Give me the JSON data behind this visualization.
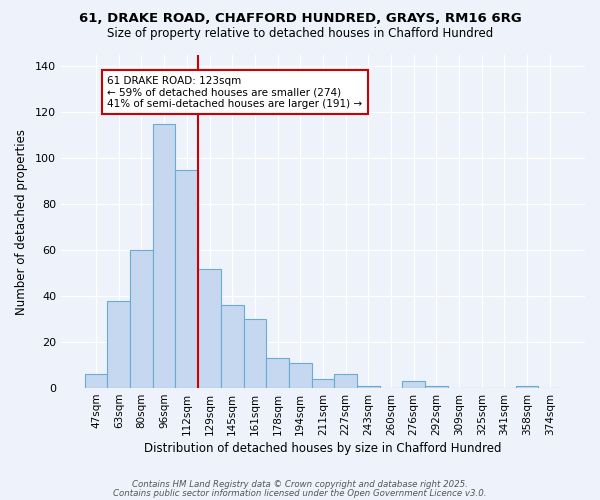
{
  "title1": "61, DRAKE ROAD, CHAFFORD HUNDRED, GRAYS, RM16 6RG",
  "title2": "Size of property relative to detached houses in Chafford Hundred",
  "xlabel": "Distribution of detached houses by size in Chafford Hundred",
  "ylabel": "Number of detached properties",
  "bar_labels": [
    "47sqm",
    "63sqm",
    "80sqm",
    "96sqm",
    "112sqm",
    "129sqm",
    "145sqm",
    "161sqm",
    "178sqm",
    "194sqm",
    "211sqm",
    "227sqm",
    "243sqm",
    "260sqm",
    "276sqm",
    "292sqm",
    "309sqm",
    "325sqm",
    "341sqm",
    "358sqm",
    "374sqm"
  ],
  "bar_values": [
    6,
    38,
    60,
    115,
    95,
    52,
    36,
    30,
    13,
    11,
    4,
    6,
    1,
    0,
    3,
    1,
    0,
    0,
    0,
    1,
    0
  ],
  "bar_color": "#c5d8f0",
  "bar_edge_color": "#6aaad4",
  "vline_x_idx": 4.5,
  "vline_color": "#cc0000",
  "annotation_text": "61 DRAKE ROAD: 123sqm\n← 59% of detached houses are smaller (274)\n41% of semi-detached houses are larger (191) →",
  "box_color": "#cc0000",
  "bg_color": "#eef2fb",
  "footer1": "Contains HM Land Registry data © Crown copyright and database right 2025.",
  "footer2": "Contains public sector information licensed under the Open Government Licence v3.0.",
  "ylim": [
    0,
    145
  ],
  "yticks": [
    0,
    20,
    40,
    60,
    80,
    100,
    120,
    140
  ]
}
